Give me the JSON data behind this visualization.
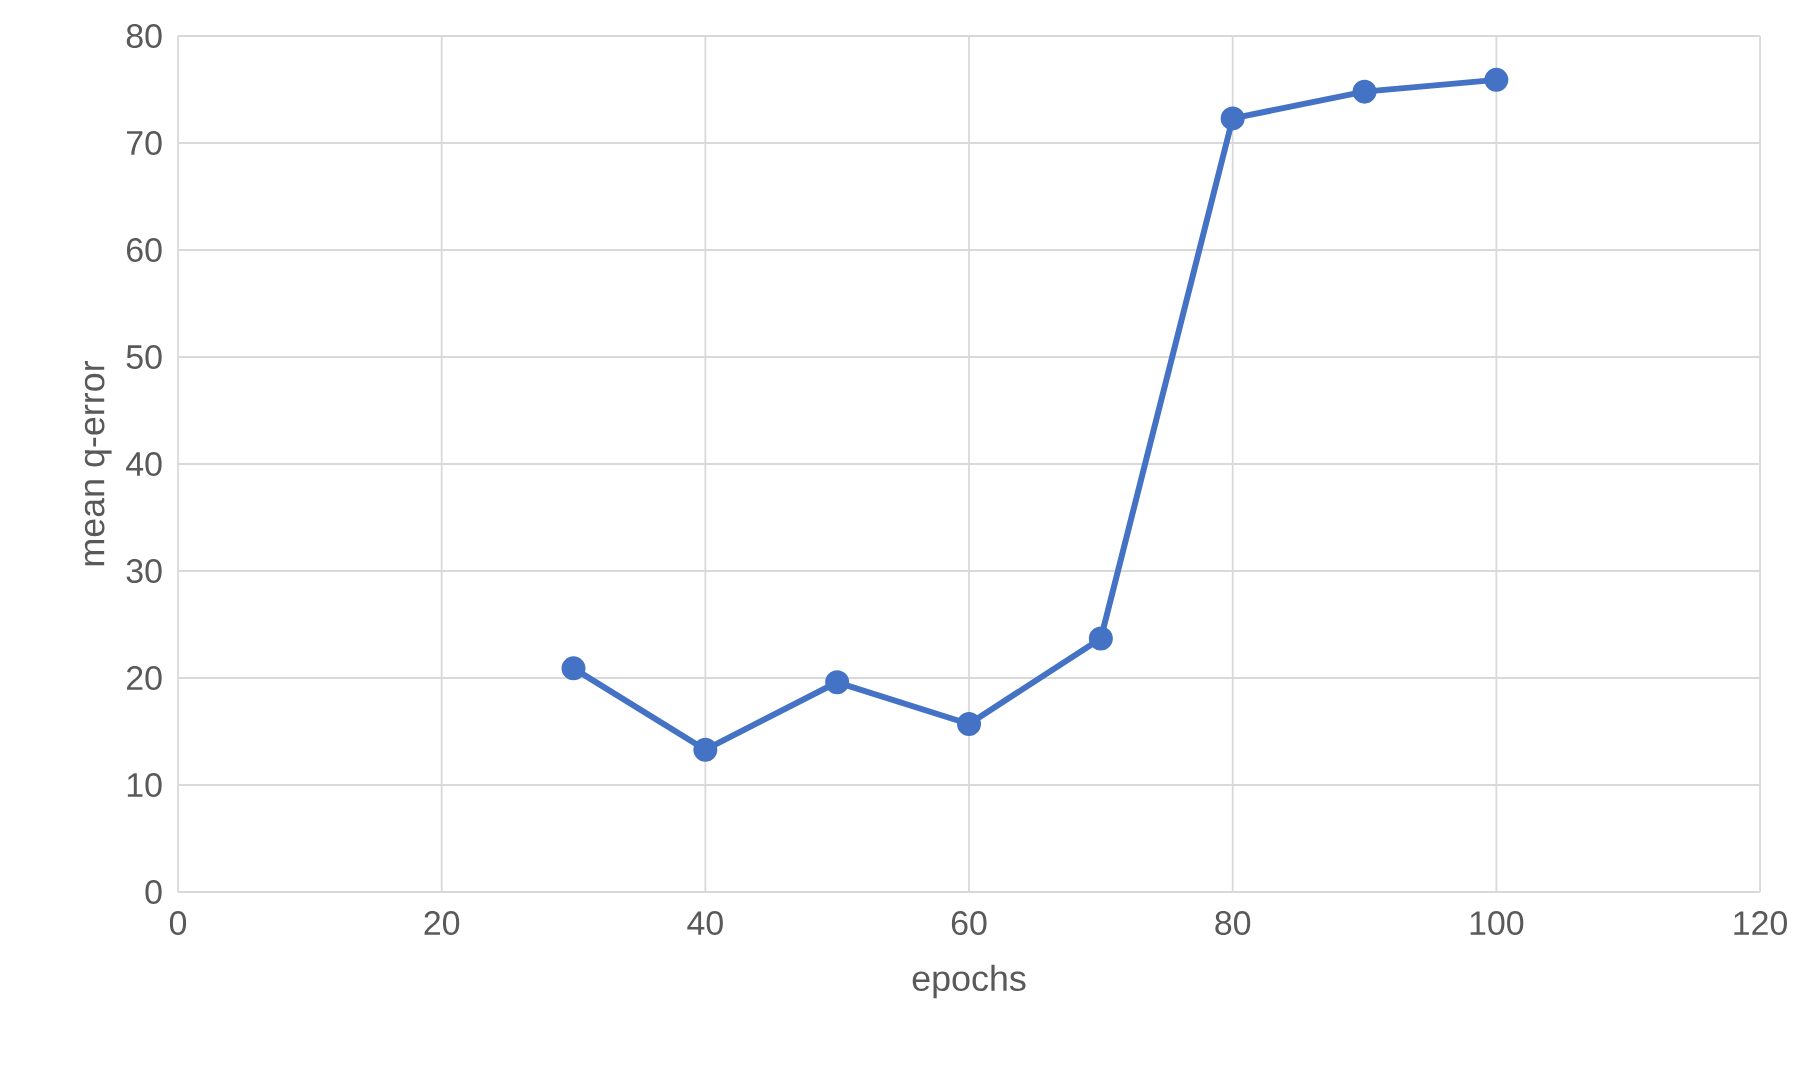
{
  "chart_data": {
    "type": "line",
    "xlabel": "epochs",
    "ylabel": "mean q-error",
    "x": [
      30,
      40,
      50,
      60,
      70,
      80,
      90,
      100
    ],
    "series": [
      {
        "color": "#4472c4",
        "values": [
          20.9,
          13.3,
          19.6,
          15.7,
          23.7,
          72.3,
          74.8,
          75.9
        ]
      }
    ],
    "xlim": [
      0,
      120
    ],
    "xticks": [
      0,
      20,
      40,
      60,
      80,
      100,
      120
    ],
    "ylim": [
      0,
      80
    ],
    "yticks": [
      0,
      10,
      20,
      30,
      40,
      50,
      60,
      70,
      80
    ],
    "grid": true,
    "marker": "circle",
    "line_style": "solid"
  }
}
